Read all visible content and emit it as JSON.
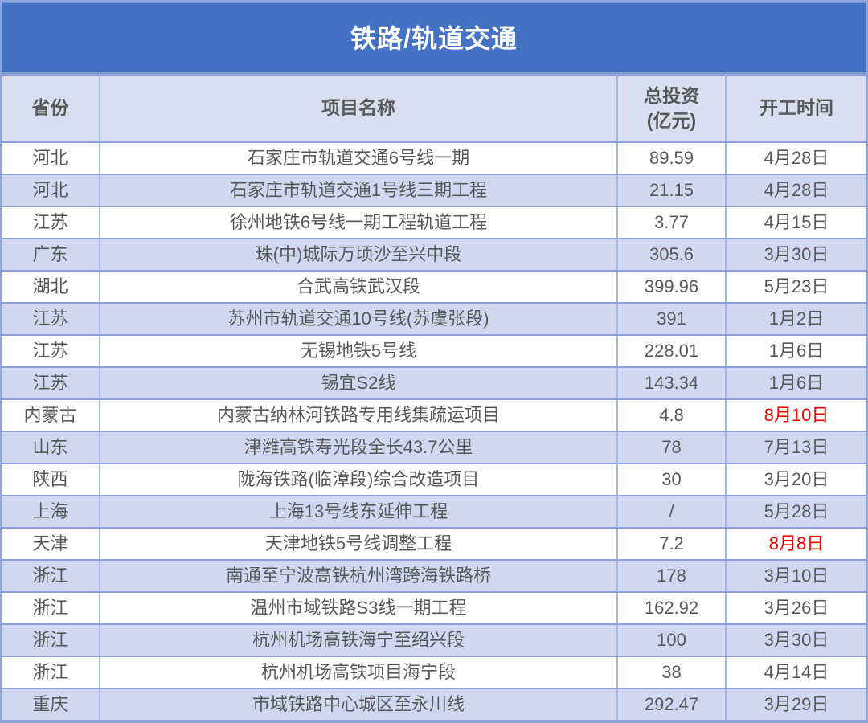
{
  "title": "铁路/轨道交通",
  "colors": {
    "title_bar_bg": "#4472C4",
    "title_text": "#FFFFFF",
    "header_bg": "#D9DFF1",
    "row_bg": "#FFFFFF",
    "row_alt_bg": "#CFD8F0",
    "text": "#595959",
    "border_horizontal": "#8CA2D8",
    "border_vertical": "#A5B7E3",
    "highlight_date": "#FF0000"
  },
  "chart_data": {
    "type": "table",
    "title": "铁路/轨道交通",
    "columns": [
      "省份",
      "项目名称",
      "总投资\n(亿元)",
      "开工时间"
    ],
    "rows": [
      {
        "province": "河北",
        "project": "石家庄市轨道交通6号线一期",
        "investment": "89.59",
        "start_date": "4月28日",
        "date_highlight": false
      },
      {
        "province": "河北",
        "project": "石家庄市轨道交通1号线三期工程",
        "investment": "21.15",
        "start_date": "4月28日",
        "date_highlight": false
      },
      {
        "province": "江苏",
        "project": "徐州地铁6号线一期工程轨道工程",
        "investment": "3.77",
        "start_date": "4月15日",
        "date_highlight": false
      },
      {
        "province": "广东",
        "project": "珠(中)城际万顷沙至兴中段",
        "investment": "305.6",
        "start_date": "3月30日",
        "date_highlight": false
      },
      {
        "province": "湖北",
        "project": "合武高铁武汉段",
        "investment": "399.96",
        "start_date": "5月23日",
        "date_highlight": false
      },
      {
        "province": "江苏",
        "project": "苏州市轨道交通10号线(苏虞张段)",
        "investment": "391",
        "start_date": "1月2日",
        "date_highlight": false
      },
      {
        "province": "江苏",
        "project": "无锡地铁5号线",
        "investment": "228.01",
        "start_date": "1月6日",
        "date_highlight": false
      },
      {
        "province": "江苏",
        "project": "锡宜S2线",
        "investment": "143.34",
        "start_date": "1月6日",
        "date_highlight": false
      },
      {
        "province": "内蒙古",
        "project": "内蒙古纳林河铁路专用线集疏运项目",
        "investment": "4.8",
        "start_date": "8月10日",
        "date_highlight": true
      },
      {
        "province": "山东",
        "project": "津潍高铁寿光段全长43.7公里",
        "investment": "78",
        "start_date": "7月13日",
        "date_highlight": false
      },
      {
        "province": "陕西",
        "project": "陇海铁路(临漳段)综合改造项目",
        "investment": "30",
        "start_date": "3月20日",
        "date_highlight": false
      },
      {
        "province": "上海",
        "project": "上海13号线东延伸工程",
        "investment": "/",
        "start_date": "5月28日",
        "date_highlight": false
      },
      {
        "province": "天津",
        "project": "天津地铁5号线调整工程",
        "investment": "7.2",
        "start_date": "8月8日",
        "date_highlight": true
      },
      {
        "province": "浙江",
        "project": "南通至宁波高铁杭州湾跨海铁路桥",
        "investment": "178",
        "start_date": "3月10日",
        "date_highlight": false
      },
      {
        "province": "浙江",
        "project": "温州市域铁路S3线一期工程",
        "investment": "162.92",
        "start_date": "3月26日",
        "date_highlight": false
      },
      {
        "province": "浙江",
        "project": "杭州机场高铁海宁至绍兴段",
        "investment": "100",
        "start_date": "3月30日",
        "date_highlight": false
      },
      {
        "province": "浙江",
        "project": "杭州机场高铁项目海宁段",
        "investment": "38",
        "start_date": "4月14日",
        "date_highlight": false
      },
      {
        "province": "重庆",
        "project": "市域铁路中心城区至永川线",
        "investment": "292.47",
        "start_date": "3月29日",
        "date_highlight": false
      }
    ]
  }
}
